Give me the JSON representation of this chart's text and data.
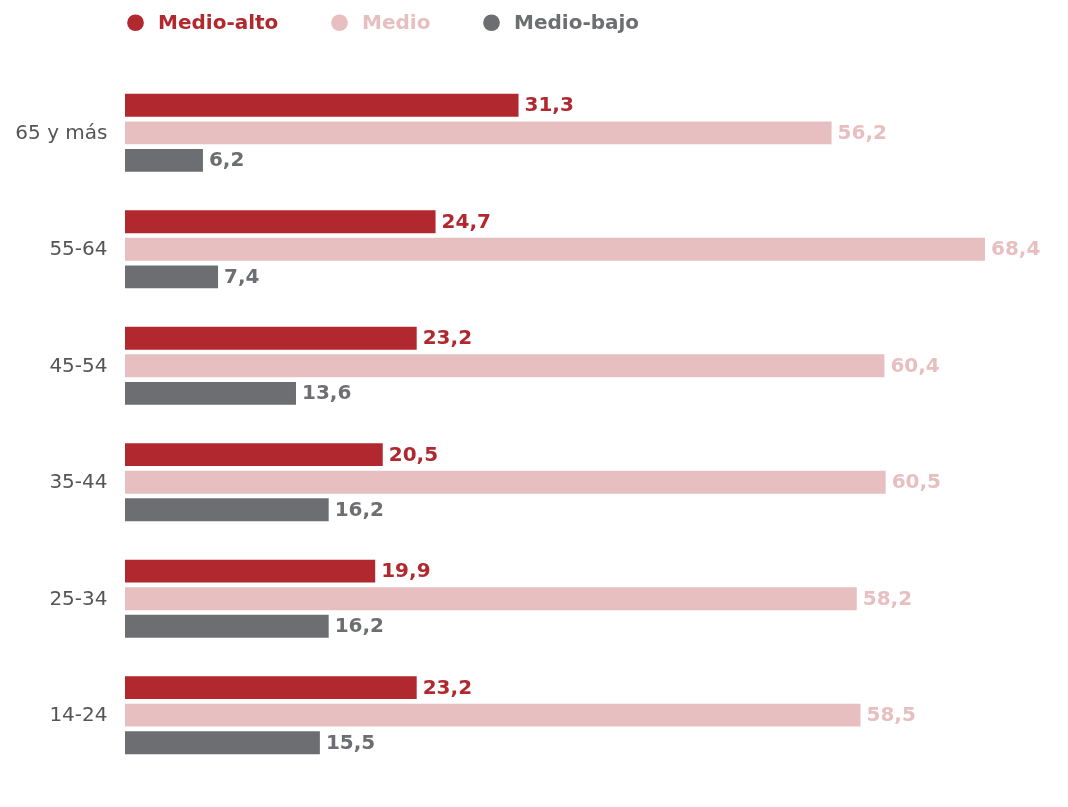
{
  "chart_data": {
    "type": "bar",
    "orientation": "horizontal",
    "legend": "top left",
    "categories": [
      "65 y más",
      "55-64",
      "45-54",
      "35-44",
      "25-34",
      "14-24"
    ],
    "series": [
      {
        "name": "Medio-alto",
        "color": "#b1282e",
        "values": [
          31.3,
          24.7,
          23.2,
          20.5,
          19.9,
          23.2
        ],
        "value_labels": [
          "31,3",
          "24,7",
          "23,2",
          "20,5",
          "19,9",
          "23,2"
        ]
      },
      {
        "name": "Medio",
        "color": "#e8bfc1",
        "values": [
          56.2,
          68.4,
          60.4,
          60.5,
          58.2,
          58.5
        ],
        "value_labels": [
          "56,2",
          "68,4",
          "60,4",
          "60,5",
          "58,2",
          "58,5"
        ]
      },
      {
        "name": "Medio-bajo",
        "color": "#6d6e72",
        "values": [
          6.2,
          7.4,
          13.6,
          16.2,
          16.2,
          15.5
        ],
        "value_labels": [
          "6,2",
          "7,4",
          "13,6",
          "16,2",
          "16,2",
          "15,5"
        ]
      }
    ]
  }
}
